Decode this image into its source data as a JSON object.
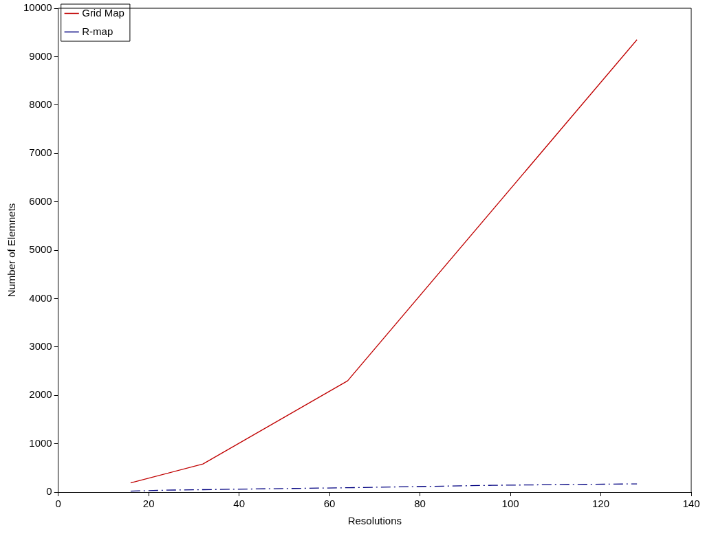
{
  "chart_data": {
    "type": "line",
    "xlabel": "Resolutions",
    "ylabel": "Number of Elemnets",
    "xlim": [
      0,
      140
    ],
    "xticks": [
      0,
      20,
      40,
      60,
      80,
      100,
      120,
      140
    ],
    "ylim": [
      0,
      10000
    ],
    "yticks": [
      0,
      1000,
      2000,
      3000,
      4000,
      5000,
      6000,
      7000,
      8000,
      9000,
      10000
    ],
    "grid": false,
    "legend": "top left",
    "marker": "none",
    "series": [
      {
        "name": "Grid Map",
        "color": "#c00000",
        "line_style": "solid",
        "x": [
          16,
          32,
          64,
          128
        ],
        "values": [
          190,
          580,
          2300,
          9350
        ]
      },
      {
        "name": "R-map",
        "color": "#000080",
        "line_style": "dashdot",
        "x": [
          16,
          24,
          32,
          48,
          64,
          96,
          128
        ],
        "values": [
          20,
          40,
          50,
          70,
          90,
          140,
          170
        ]
      }
    ]
  }
}
